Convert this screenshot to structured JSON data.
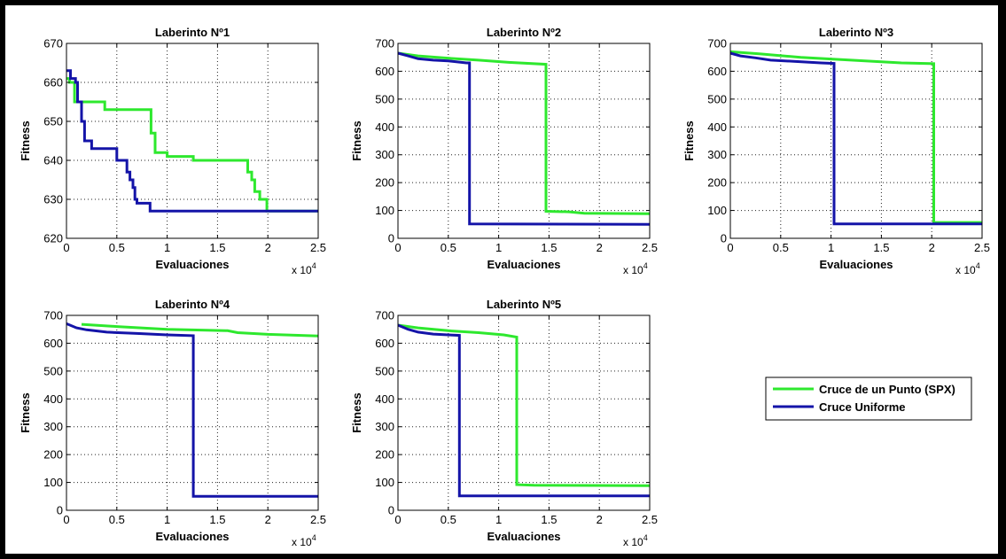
{
  "figure": {
    "background": "#ffffff",
    "border_color": "#000000"
  },
  "colors": {
    "spx": "#2ee82e",
    "uniform": "#1414a8",
    "grid": "#222222"
  },
  "legend": {
    "entries": [
      "Cruce de un Punto (SPX)",
      "Cruce Uniforme"
    ],
    "placement": "right-middle"
  },
  "chart_data": [
    {
      "type": "line",
      "title": "Laberinto Nº1",
      "xlabel": "Evaluaciones",
      "ylabel": "Fitness",
      "x_exponent_label": "x 10",
      "x_exponent": "4",
      "xlim": [
        0,
        25000
      ],
      "ylim": [
        620,
        670
      ],
      "xticks": [
        0,
        5000,
        10000,
        15000,
        20000,
        25000
      ],
      "xtick_labels": [
        "0",
        "0.5",
        "1",
        "1.5",
        "2",
        "2.5"
      ],
      "yticks": [
        620,
        630,
        640,
        650,
        660,
        670
      ],
      "ytick_labels": [
        "620",
        "630",
        "640",
        "650",
        "660",
        "670"
      ],
      "grid": true,
      "series": [
        {
          "name": "Cruce de un Punto (SPX)",
          "color": "#2ee82e",
          "x": [
            0,
            300,
            300,
            800,
            800,
            3800,
            3800,
            8400,
            8400,
            8800,
            8800,
            10000,
            10000,
            12600,
            12600,
            18000,
            18000,
            18400,
            18400,
            18700,
            18700,
            19200,
            19200,
            19900,
            19900,
            25000
          ],
          "y": [
            661,
            661,
            660,
            660,
            655,
            655,
            653,
            653,
            647,
            647,
            642,
            642,
            641,
            641,
            640,
            640,
            637,
            637,
            635,
            635,
            632,
            632,
            630,
            630,
            627,
            627
          ]
        },
        {
          "name": "Cruce Uniforme",
          "color": "#1414a8",
          "x": [
            0,
            400,
            400,
            900,
            900,
            1100,
            1100,
            1500,
            1500,
            1800,
            1800,
            2500,
            2500,
            5000,
            5000,
            6000,
            6000,
            6300,
            6300,
            6600,
            6600,
            6800,
            6800,
            7000,
            7000,
            8300,
            8300,
            25000
          ],
          "y": [
            663,
            663,
            661,
            661,
            660,
            660,
            655,
            655,
            650,
            650,
            645,
            645,
            643,
            643,
            640,
            640,
            637,
            637,
            635,
            635,
            633,
            633,
            630,
            630,
            629,
            629,
            627,
            627
          ]
        }
      ]
    },
    {
      "type": "line",
      "title": "Laberinto Nº2",
      "xlabel": "Evaluaciones",
      "ylabel": "Fitness",
      "x_exponent_label": "x 10",
      "x_exponent": "4",
      "xlim": [
        0,
        25000
      ],
      "ylim": [
        0,
        700
      ],
      "xticks": [
        0,
        5000,
        10000,
        15000,
        20000,
        25000
      ],
      "xtick_labels": [
        "0",
        "0.5",
        "1",
        "1.5",
        "2",
        "2.5"
      ],
      "yticks": [
        0,
        100,
        200,
        300,
        400,
        500,
        600,
        700
      ],
      "ytick_labels": [
        "0",
        "100",
        "200",
        "300",
        "400",
        "500",
        "600",
        "700"
      ],
      "grid": true,
      "series": [
        {
          "name": "Cruce de un Punto (SPX)",
          "color": "#2ee82e",
          "x": [
            0,
            2000,
            4500,
            8000,
            11000,
            14700,
            14700,
            17000,
            18500,
            25000
          ],
          "y": [
            665,
            655,
            648,
            640,
            632,
            625,
            97,
            95,
            90,
            88
          ]
        },
        {
          "name": "Cruce Uniforme",
          "color": "#1414a8",
          "x": [
            0,
            1000,
            2000,
            3500,
            5000,
            6800,
            7100,
            7100,
            25000
          ],
          "y": [
            665,
            655,
            645,
            640,
            637,
            630,
            630,
            52,
            50
          ]
        }
      ]
    },
    {
      "type": "line",
      "title": "Laberinto Nº3",
      "xlabel": "Evaluaciones",
      "ylabel": "Fitness",
      "x_exponent_label": "x 10",
      "x_exponent": "4",
      "xlim": [
        0,
        25000
      ],
      "ylim": [
        0,
        700
      ],
      "xticks": [
        0,
        5000,
        10000,
        15000,
        20000,
        25000
      ],
      "xtick_labels": [
        "0",
        "0.5",
        "1",
        "1.5",
        "2",
        "2.5"
      ],
      "yticks": [
        0,
        100,
        200,
        300,
        400,
        500,
        600,
        700
      ],
      "ytick_labels": [
        "0",
        "100",
        "200",
        "300",
        "400",
        "500",
        "600",
        "700"
      ],
      "grid": true,
      "series": [
        {
          "name": "Cruce de un Punto (SPX)",
          "color": "#2ee82e",
          "x": [
            0,
            3000,
            7000,
            12000,
            17000,
            20200,
            20200,
            25000
          ],
          "y": [
            670,
            662,
            650,
            640,
            630,
            627,
            57,
            57
          ]
        },
        {
          "name": "Cruce Uniforme",
          "color": "#1414a8",
          "x": [
            0,
            1000,
            2500,
            4000,
            6500,
            9000,
            10300,
            10300,
            25000
          ],
          "y": [
            665,
            655,
            648,
            640,
            635,
            630,
            628,
            52,
            52
          ]
        }
      ]
    },
    {
      "type": "line",
      "title": "Laberinto Nº4",
      "xlabel": "Evaluaciones",
      "ylabel": "Fitness",
      "x_exponent_label": "x 10",
      "x_exponent": "4",
      "xlim": [
        0,
        25000
      ],
      "ylim": [
        0,
        700
      ],
      "xticks": [
        0,
        5000,
        10000,
        15000,
        20000,
        25000
      ],
      "xtick_labels": [
        "0",
        "0.5",
        "1",
        "1.5",
        "2",
        "2.5"
      ],
      "yticks": [
        0,
        100,
        200,
        300,
        400,
        500,
        600,
        700
      ],
      "ytick_labels": [
        "0",
        "100",
        "200",
        "300",
        "400",
        "500",
        "600",
        "700"
      ],
      "grid": true,
      "series": [
        {
          "name": "Cruce de un Punto (SPX)",
          "color": "#2ee82e",
          "x": [
            1500,
            5000,
            10000,
            16000,
            17000,
            20000,
            25000
          ],
          "y": [
            668,
            660,
            650,
            645,
            638,
            632,
            626
          ]
        },
        {
          "name": "Cruce Uniforme",
          "color": "#1414a8",
          "x": [
            0,
            1000,
            2000,
            4000,
            7000,
            10000,
            12600,
            12600,
            25000
          ],
          "y": [
            670,
            655,
            648,
            640,
            635,
            630,
            627,
            50,
            50
          ]
        }
      ]
    },
    {
      "type": "line",
      "title": "Laberinto Nº5",
      "xlabel": "Evaluaciones",
      "ylabel": "Fitness",
      "x_exponent_label": "x 10",
      "x_exponent": "4",
      "xlim": [
        0,
        25000
      ],
      "ylim": [
        0,
        700
      ],
      "xticks": [
        0,
        5000,
        10000,
        15000,
        20000,
        25000
      ],
      "xtick_labels": [
        "0",
        "0.5",
        "1",
        "1.5",
        "2",
        "2.5"
      ],
      "yticks": [
        0,
        100,
        200,
        300,
        400,
        500,
        600,
        700
      ],
      "ytick_labels": [
        "0",
        "100",
        "200",
        "300",
        "400",
        "500",
        "600",
        "700"
      ],
      "grid": true,
      "series": [
        {
          "name": "Cruce de un Punto (SPX)",
          "color": "#2ee82e",
          "x": [
            0,
            2000,
            5000,
            8000,
            10500,
            11800,
            11800,
            13500,
            25000
          ],
          "y": [
            665,
            655,
            645,
            638,
            630,
            622,
            92,
            90,
            88
          ]
        },
        {
          "name": "Cruce Uniforme",
          "color": "#1414a8",
          "x": [
            0,
            1000,
            2000,
            3500,
            5000,
            6100,
            6100,
            25000
          ],
          "y": [
            665,
            650,
            640,
            633,
            630,
            628,
            52,
            52
          ]
        }
      ]
    }
  ]
}
